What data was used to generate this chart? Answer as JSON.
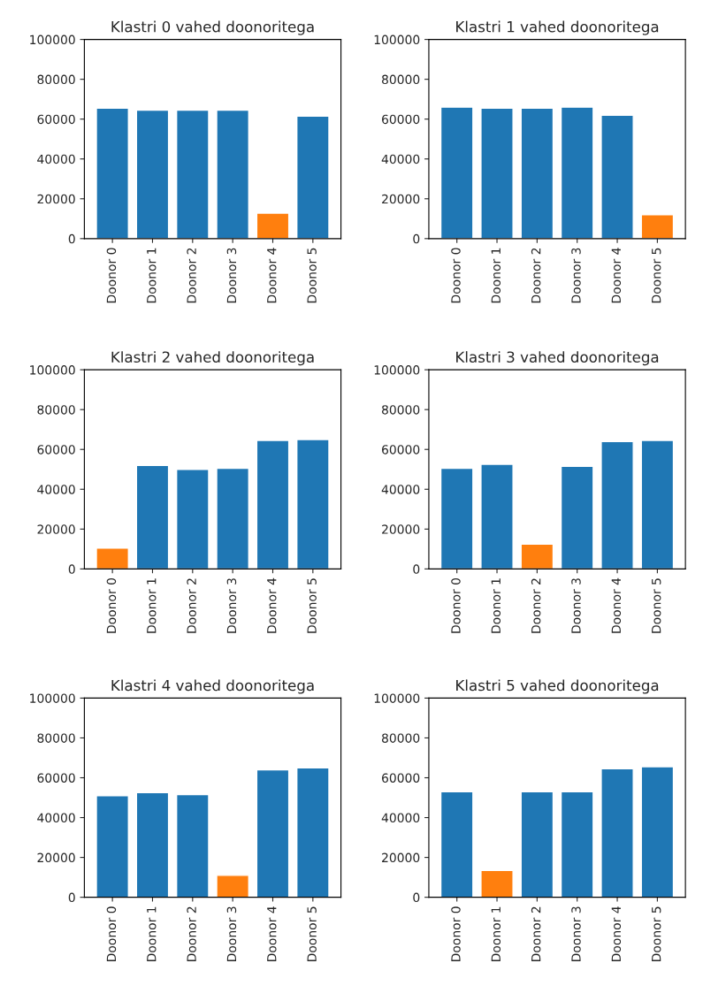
{
  "chart_data": [
    {
      "type": "bar",
      "title": "Klastri 0 vahed doonoritega",
      "categories": [
        "Doonor 0",
        "Doonor 1",
        "Doonor 2",
        "Doonor 3",
        "Doonor 4",
        "Doonor 5"
      ],
      "values": [
        65500,
        64500,
        64500,
        64500,
        12800,
        61500
      ],
      "colors": [
        "#1f77b4",
        "#1f77b4",
        "#1f77b4",
        "#1f77b4",
        "#ff7f0e",
        "#1f77b4"
      ],
      "ylim": [
        0,
        100000
      ],
      "yticks": [
        0,
        20000,
        40000,
        60000,
        80000,
        100000
      ]
    },
    {
      "type": "bar",
      "title": "Klastri 1 vahed doonoritega",
      "categories": [
        "Doonor 0",
        "Doonor 1",
        "Doonor 2",
        "Doonor 3",
        "Doonor 4",
        "Doonor 5"
      ],
      "values": [
        66000,
        65500,
        65500,
        66000,
        62000,
        12000
      ],
      "colors": [
        "#1f77b4",
        "#1f77b4",
        "#1f77b4",
        "#1f77b4",
        "#1f77b4",
        "#ff7f0e"
      ],
      "ylim": [
        0,
        100000
      ],
      "yticks": [
        0,
        20000,
        40000,
        60000,
        80000,
        100000
      ]
    },
    {
      "type": "bar",
      "title": "Klastri 2 vahed doonoritega",
      "categories": [
        "Doonor 0",
        "Doonor 1",
        "Doonor 2",
        "Doonor 3",
        "Doonor 4",
        "Doonor 5"
      ],
      "values": [
        10500,
        52000,
        50000,
        50500,
        64500,
        65000
      ],
      "colors": [
        "#ff7f0e",
        "#1f77b4",
        "#1f77b4",
        "#1f77b4",
        "#1f77b4",
        "#1f77b4"
      ],
      "ylim": [
        0,
        100000
      ],
      "yticks": [
        0,
        20000,
        40000,
        60000,
        80000,
        100000
      ]
    },
    {
      "type": "bar",
      "title": "Klastri 3 vahed doonoritega",
      "categories": [
        "Doonor 0",
        "Doonor 1",
        "Doonor 2",
        "Doonor 3",
        "Doonor 4",
        "Doonor 5"
      ],
      "values": [
        50500,
        52500,
        12500,
        51500,
        64000,
        64500
      ],
      "colors": [
        "#1f77b4",
        "#1f77b4",
        "#ff7f0e",
        "#1f77b4",
        "#1f77b4",
        "#1f77b4"
      ],
      "ylim": [
        0,
        100000
      ],
      "yticks": [
        0,
        20000,
        40000,
        60000,
        80000,
        100000
      ]
    },
    {
      "type": "bar",
      "title": "Klastri 4 vahed doonoritega",
      "categories": [
        "Doonor 0",
        "Doonor 1",
        "Doonor 2",
        "Doonor 3",
        "Doonor 4",
        "Doonor 5"
      ],
      "values": [
        51000,
        52500,
        51500,
        11000,
        64000,
        65000
      ],
      "colors": [
        "#1f77b4",
        "#1f77b4",
        "#1f77b4",
        "#ff7f0e",
        "#1f77b4",
        "#1f77b4"
      ],
      "ylim": [
        0,
        100000
      ],
      "yticks": [
        0,
        20000,
        40000,
        60000,
        80000,
        100000
      ]
    },
    {
      "type": "bar",
      "title": "Klastri 5 vahed doonoritega",
      "categories": [
        "Doonor 0",
        "Doonor 1",
        "Doonor 2",
        "Doonor 3",
        "Doonor 4",
        "Doonor 5"
      ],
      "values": [
        53000,
        13500,
        53000,
        53000,
        64500,
        65500
      ],
      "colors": [
        "#1f77b4",
        "#ff7f0e",
        "#1f77b4",
        "#1f77b4",
        "#1f77b4",
        "#1f77b4"
      ],
      "ylim": [
        0,
        100000
      ],
      "yticks": [
        0,
        20000,
        40000,
        60000,
        80000,
        100000
      ]
    }
  ]
}
